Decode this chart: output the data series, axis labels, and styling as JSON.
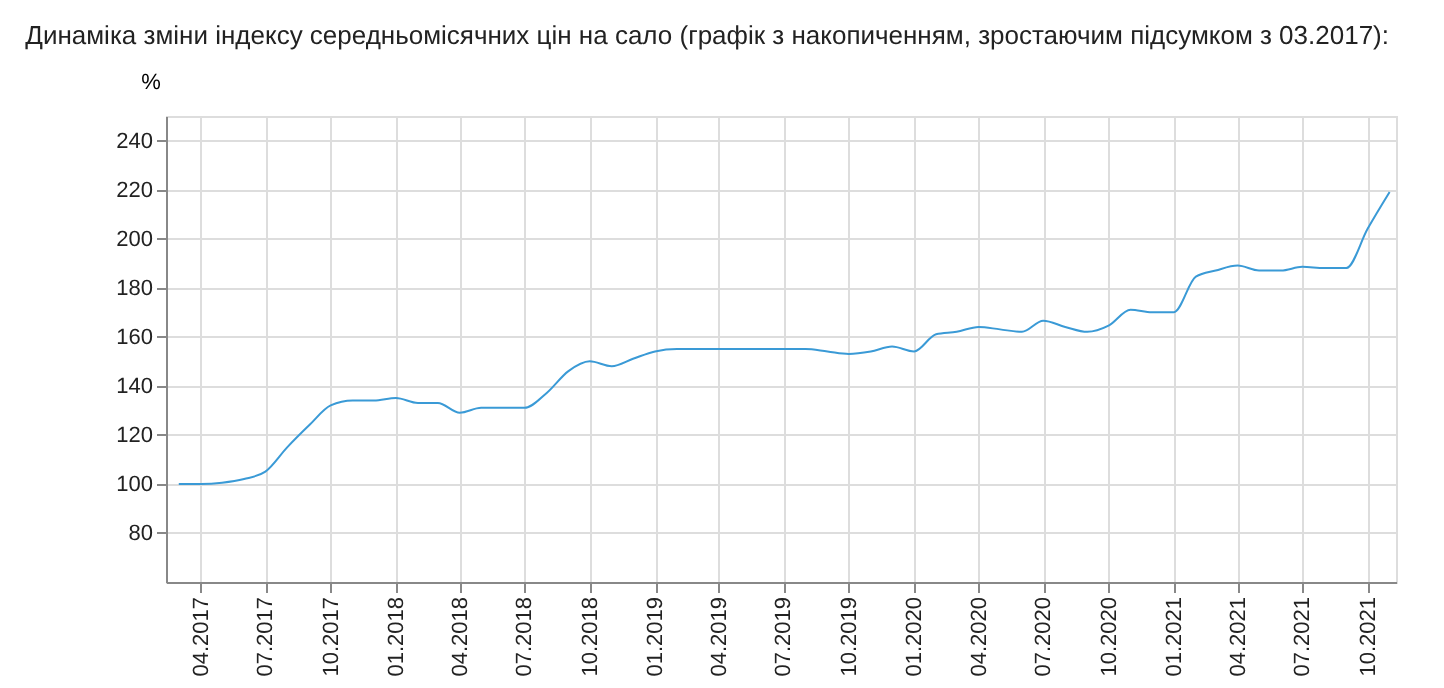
{
  "chart_data": {
    "type": "line",
    "title": "Динаміка зміни індексу середньомісячних цін на сало (графік з накопиченням, зростаючим підсумком з 03.2017):",
    "ylabel": "%",
    "x": [
      "2017-03",
      "2017-04",
      "2017-05",
      "2017-06",
      "2017-07",
      "2017-08",
      "2017-09",
      "2017-10",
      "2017-11",
      "2017-12",
      "2018-01",
      "2018-02",
      "2018-03",
      "2018-04",
      "2018-05",
      "2018-06",
      "2018-07",
      "2018-08",
      "2018-09",
      "2018-10",
      "2018-11",
      "2018-12",
      "2019-01",
      "2019-02",
      "2019-03",
      "2019-04",
      "2019-05",
      "2019-06",
      "2019-07",
      "2019-08",
      "2019-09",
      "2019-10",
      "2019-11",
      "2019-12",
      "2020-01",
      "2020-02",
      "2020-03",
      "2020-04",
      "2020-05",
      "2020-06",
      "2020-07",
      "2020-08",
      "2020-09",
      "2020-10",
      "2020-11",
      "2020-12",
      "2021-01",
      "2021-02",
      "2021-03",
      "2021-04",
      "2021-05",
      "2021-06",
      "2021-07",
      "2021-08",
      "2021-09",
      "2021-10",
      "2021-11"
    ],
    "series": [
      {
        "color": "#3a9ad6",
        "values": [
          100,
          100,
          100.5,
          102,
          105,
          115,
          124,
          132,
          134,
          134,
          135,
          133,
          133,
          129,
          131,
          131,
          131,
          137,
          146,
          150,
          148,
          151,
          154,
          155,
          155,
          155,
          155,
          155,
          155,
          155,
          154,
          153,
          154,
          156,
          154,
          161,
          162,
          164,
          163,
          162,
          166.5,
          164,
          162,
          164.5,
          171,
          170,
          170,
          184.5,
          187,
          189,
          187,
          187,
          188.5,
          188,
          188,
          204,
          219
        ]
      }
    ],
    "xlim": [
      "2017-02-11",
      "2021-11-10"
    ],
    "xticks": [
      {
        "value": "2017-04",
        "label": "04.2017"
      },
      {
        "value": "2017-07",
        "label": "07.2017"
      },
      {
        "value": "2017-10",
        "label": "10.2017"
      },
      {
        "value": "2018-01",
        "label": "01.2018"
      },
      {
        "value": "2018-04",
        "label": "04.2018"
      },
      {
        "value": "2018-07",
        "label": "07.2018"
      },
      {
        "value": "2018-10",
        "label": "10.2018"
      },
      {
        "value": "2019-01",
        "label": "01.2019"
      },
      {
        "value": "2019-04",
        "label": "04.2019"
      },
      {
        "value": "2019-07",
        "label": "07.2019"
      },
      {
        "value": "2019-10",
        "label": "10.2019"
      },
      {
        "value": "2020-01",
        "label": "01.2020"
      },
      {
        "value": "2020-04",
        "label": "04.2020"
      },
      {
        "value": "2020-07",
        "label": "07.2020"
      },
      {
        "value": "2020-10",
        "label": "10.2020"
      },
      {
        "value": "2021-01",
        "label": "01.2021"
      },
      {
        "value": "2021-04",
        "label": "04.2021"
      },
      {
        "value": "2021-07",
        "label": "07.2021"
      },
      {
        "value": "2021-10",
        "label": "10.2021"
      }
    ],
    "ylim": [
      60,
      250
    ],
    "yticks": [
      80,
      100,
      120,
      140,
      160,
      180,
      200,
      220,
      240
    ],
    "grid": true,
    "legend": false,
    "marker": "none",
    "line_style": "solid"
  }
}
